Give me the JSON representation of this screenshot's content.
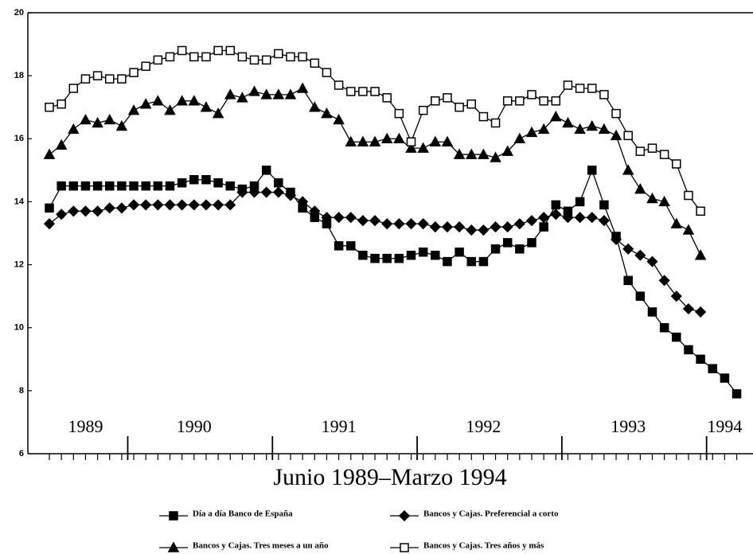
{
  "chart_data": {
    "type": "line",
    "x_title": "Junio 1989–Marzo 1994",
    "categories": [
      null,
      null,
      null,
      "1989",
      null,
      null,
      null,
      null,
      null,
      null,
      null,
      null,
      "1990",
      null,
      null,
      null,
      null,
      null,
      null,
      null,
      null,
      null,
      null,
      null,
      "1991",
      null,
      null,
      null,
      null,
      null,
      null,
      null,
      null,
      null,
      null,
      null,
      "1992",
      null,
      null,
      null,
      null,
      null,
      null,
      null,
      null,
      null,
      null,
      null,
      "1993",
      null,
      null,
      null,
      null,
      null,
      null,
      null,
      "1994",
      null
    ],
    "ylim": [
      6,
      20
    ],
    "yticks": [
      6,
      8,
      10,
      12,
      14,
      16,
      18,
      20
    ],
    "series": [
      {
        "name": "Día a día Banco de España",
        "color": "#000000",
        "marker": "square",
        "values": [
          13.8,
          14.5,
          14.5,
          14.5,
          14.5,
          14.5,
          14.5,
          14.5,
          14.5,
          14.5,
          14.5,
          14.6,
          14.7,
          14.7,
          14.6,
          14.5,
          14.4,
          14.5,
          15.0,
          14.6,
          14.3,
          13.8,
          13.5,
          13.3,
          12.6,
          12.6,
          12.3,
          12.2,
          12.2,
          12.2,
          12.3,
          12.4,
          12.3,
          12.1,
          12.4,
          12.1,
          12.1,
          12.5,
          12.7,
          12.5,
          12.7,
          13.2,
          13.9,
          13.7,
          14.0,
          15.0,
          13.9,
          12.9,
          11.5,
          11.0,
          10.5,
          10.0,
          9.7,
          9.3,
          9.0,
          8.7,
          8.4,
          7.9
        ]
      },
      {
        "name": "Bancos y Cajas. Preferencial a corto",
        "color": "#000000",
        "marker": "diamond",
        "values": [
          13.3,
          13.6,
          13.7,
          13.7,
          13.7,
          13.8,
          13.8,
          13.9,
          13.9,
          13.9,
          13.9,
          13.9,
          13.9,
          13.9,
          13.9,
          13.9,
          14.3,
          14.3,
          14.3,
          14.3,
          14.2,
          14.0,
          13.7,
          13.5,
          13.5,
          13.5,
          13.4,
          13.4,
          13.3,
          13.3,
          13.3,
          13.3,
          13.2,
          13.2,
          13.2,
          13.1,
          13.1,
          13.2,
          13.2,
          13.3,
          13.4,
          13.5,
          13.6,
          13.5,
          13.5,
          13.5,
          13.4,
          12.8,
          12.5,
          12.3,
          12.1,
          11.5,
          11.0,
          10.6,
          10.5,
          null,
          null,
          null
        ]
      },
      {
        "name": "Bancos y Cajas. Tres meses a un año",
        "color": "#000000",
        "marker": "triangle",
        "values": [
          15.5,
          15.8,
          16.3,
          16.6,
          16.5,
          16.6,
          16.4,
          16.9,
          17.1,
          17.2,
          16.9,
          17.2,
          17.2,
          17.0,
          16.8,
          17.4,
          17.3,
          17.5,
          17.4,
          17.4,
          17.4,
          17.6,
          17.0,
          16.8,
          16.6,
          15.9,
          15.9,
          15.9,
          16.0,
          16.0,
          15.7,
          15.7,
          15.9,
          15.9,
          15.5,
          15.5,
          15.5,
          15.4,
          15.6,
          16.0,
          16.2,
          16.3,
          16.7,
          16.5,
          16.3,
          16.4,
          16.3,
          16.1,
          15.0,
          14.4,
          14.1,
          14.0,
          13.3,
          13.1,
          12.3,
          null,
          null,
          null
        ]
      },
      {
        "name": "Bancos y Cajas. Tres años y más",
        "color": "#000000",
        "marker": "open-square",
        "values": [
          17.0,
          17.1,
          17.6,
          17.9,
          18.0,
          17.9,
          17.9,
          18.1,
          18.3,
          18.5,
          18.6,
          18.8,
          18.6,
          18.6,
          18.8,
          18.8,
          18.6,
          18.5,
          18.5,
          18.7,
          18.6,
          18.6,
          18.4,
          18.1,
          17.7,
          17.5,
          17.5,
          17.5,
          17.3,
          16.8,
          15.9,
          16.9,
          17.2,
          17.3,
          17.0,
          17.1,
          16.7,
          16.5,
          17.2,
          17.2,
          17.4,
          17.2,
          17.2,
          17.7,
          17.6,
          17.6,
          17.4,
          16.8,
          16.1,
          15.6,
          15.7,
          15.5,
          15.2,
          14.2,
          13.7,
          null,
          null,
          null
        ]
      }
    ]
  }
}
